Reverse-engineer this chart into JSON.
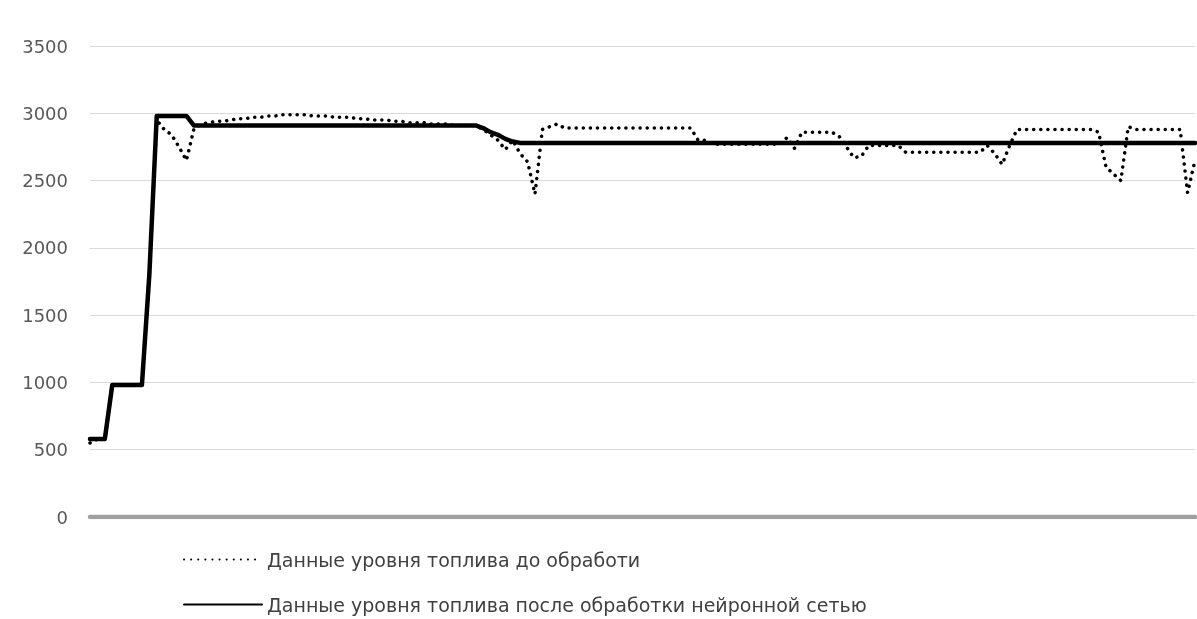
{
  "chart_data": {
    "type": "line",
    "categories": [
      null,
      null,
      null,
      null,
      null,
      null,
      null,
      null,
      null,
      null,
      null,
      null,
      null,
      null,
      null,
      null,
      null,
      null,
      null,
      null,
      null,
      null,
      null,
      null,
      null,
      null,
      null,
      null,
      null,
      null,
      null,
      null,
      null,
      null,
      null,
      null,
      null,
      null,
      null,
      null,
      null,
      null,
      null,
      null,
      null,
      null,
      null,
      null,
      null,
      null,
      null,
      null,
      null,
      null,
      null,
      null,
      null,
      null,
      null,
      null,
      null,
      null,
      null,
      null,
      null,
      null,
      null,
      null,
      null,
      null,
      null,
      null,
      null,
      null,
      null,
      null,
      null,
      null,
      null,
      null,
      null,
      null,
      null,
      null,
      null,
      null,
      null,
      null,
      null,
      null,
      null,
      null,
      null,
      null,
      null,
      null,
      null,
      null,
      null,
      null,
      null,
      null,
      null,
      null,
      null,
      null,
      null,
      null,
      null,
      null,
      null,
      null,
      null,
      null,
      null,
      null,
      null,
      null,
      null,
      null,
      null,
      null,
      null,
      null,
      null,
      null,
      null,
      null,
      null,
      null,
      null,
      null,
      null,
      null,
      null,
      null,
      null,
      null,
      null,
      null,
      null,
      null,
      null,
      null,
      null,
      null,
      null,
      null,
      null,
      null
    ],
    "ylim": [
      0,
      3500
    ],
    "yticks": [
      0,
      500,
      1000,
      1500,
      2000,
      2500,
      3000,
      3500
    ],
    "grid": "y",
    "legend": "bottom",
    "tick_labels": "y",
    "series": [
      {
        "name": "Данные уровня топлива до обработи",
        "color": "#000000",
        "line_style": "dotted",
        "values": [
          550,
          580,
          580,
          980,
          980,
          980,
          980,
          980,
          1800,
          2950,
          2880,
          2840,
          2750,
          2650,
          2880,
          2920,
          2930,
          2940,
          2940,
          2950,
          2960,
          2960,
          2970,
          2970,
          2980,
          2980,
          2990,
          2990,
          2990,
          2990,
          2980,
          2980,
          2980,
          2970,
          2970,
          2970,
          2960,
          2960,
          2950,
          2950,
          2950,
          2940,
          2940,
          2930,
          2930,
          2930,
          2920,
          2920,
          2920,
          2910,
          2910,
          2910,
          2910,
          2880,
          2840,
          2800,
          2730,
          2800,
          2700,
          2640,
          2400,
          2880,
          2900,
          2920,
          2890,
          2890,
          2890,
          2890,
          2890,
          2890,
          2890,
          2890,
          2890,
          2890,
          2890,
          2890,
          2890,
          2890,
          2890,
          2890,
          2890,
          2890,
          2800,
          2800,
          2770,
          2770,
          2770,
          2770,
          2770,
          2770,
          2770,
          2770,
          2770,
          2770,
          2820,
          2740,
          2860,
          2860,
          2860,
          2860,
          2860,
          2830,
          2750,
          2670,
          2680,
          2760,
          2760,
          2760,
          2760,
          2760,
          2710,
          2710,
          2710,
          2710,
          2710,
          2710,
          2710,
          2710,
          2710,
          2710,
          2710,
          2760,
          2700,
          2620,
          2760,
          2880,
          2880,
          2880,
          2880,
          2880,
          2880,
          2880,
          2880,
          2880,
          2880,
          2880,
          2860,
          2600,
          2550,
          2500,
          2900,
          2880,
          2880,
          2880,
          2880,
          2880,
          2880,
          2880,
          2410,
          2650
        ]
      },
      {
        "name": "Данные уровня топлива после обработки нейронной сетью",
        "color": "#000000",
        "line_style": "solid",
        "values": [
          580,
          580,
          580,
          980,
          980,
          980,
          980,
          980,
          1800,
          2980,
          2980,
          2980,
          2980,
          2980,
          2910,
          2910,
          2910,
          2910,
          2910,
          2910,
          2910,
          2910,
          2910,
          2910,
          2910,
          2910,
          2910,
          2910,
          2910,
          2910,
          2910,
          2910,
          2910,
          2910,
          2910,
          2910,
          2910,
          2910,
          2910,
          2910,
          2910,
          2910,
          2910,
          2910,
          2910,
          2910,
          2910,
          2910,
          2910,
          2910,
          2910,
          2910,
          2910,
          2890,
          2860,
          2840,
          2810,
          2790,
          2780,
          2780,
          2780,
          2780,
          2780,
          2780,
          2780,
          2780,
          2780,
          2780,
          2780,
          2780,
          2780,
          2780,
          2780,
          2780,
          2780,
          2780,
          2780,
          2780,
          2780,
          2780,
          2780,
          2780,
          2780,
          2780,
          2780,
          2780,
          2780,
          2780,
          2780,
          2780,
          2780,
          2780,
          2780,
          2780,
          2780,
          2780,
          2780,
          2780,
          2780,
          2780,
          2780,
          2780,
          2780,
          2780,
          2780,
          2780,
          2780,
          2780,
          2780,
          2780,
          2780,
          2780,
          2780,
          2780,
          2780,
          2780,
          2780,
          2780,
          2780,
          2780,
          2780,
          2780,
          2780,
          2780,
          2780,
          2780,
          2780,
          2780,
          2780,
          2780,
          2780,
          2780,
          2780,
          2780,
          2780,
          2780,
          2780,
          2780,
          2780,
          2780,
          2780,
          2780,
          2780,
          2780,
          2780,
          2780,
          2780,
          2780,
          2780,
          2780
        ]
      },
      {
        "color": "#a0a0a0",
        "line_style": "solid",
        "values": [
          0,
          0,
          0,
          0,
          0,
          0,
          0,
          0,
          0,
          0,
          0,
          0,
          0,
          0,
          0,
          0,
          0,
          0,
          0,
          0,
          0,
          0,
          0,
          0,
          0,
          0,
          0,
          0,
          0,
          0,
          0,
          0,
          0,
          0,
          0,
          0,
          0,
          0,
          0,
          0,
          0,
          0,
          0,
          0,
          0,
          0,
          0,
          0,
          0,
          0,
          0,
          0,
          0,
          0,
          0,
          0,
          0,
          0,
          0,
          0,
          0,
          0,
          0,
          0,
          0,
          0,
          0,
          0,
          0,
          0,
          0,
          0,
          0,
          0,
          0,
          0,
          0,
          0,
          0,
          0,
          0,
          0,
          0,
          0,
          0,
          0,
          0,
          0,
          0,
          0,
          0,
          0,
          0,
          0,
          0,
          0,
          0,
          0,
          0,
          0,
          0,
          0,
          0,
          0,
          0,
          0,
          0,
          0,
          0,
          0,
          0,
          0,
          0,
          0,
          0,
          0,
          0,
          0,
          0,
          0,
          0,
          0,
          0,
          0,
          0,
          0,
          0,
          0,
          0,
          0,
          0,
          0,
          0,
          0,
          0,
          0,
          0,
          0,
          0,
          0,
          0,
          0,
          0,
          0,
          0,
          0,
          0,
          0,
          0,
          0
        ]
      }
    ]
  }
}
